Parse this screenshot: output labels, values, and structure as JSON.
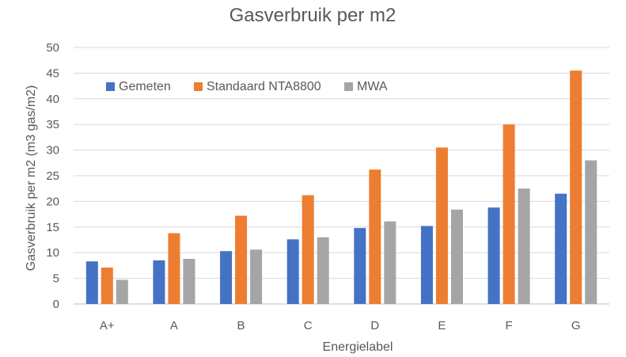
{
  "chart_data": {
    "type": "bar",
    "title": "Gasverbruik per m2",
    "xlabel": "Energielabel",
    "ylabel": "Gasverbruik per m2 (m3 gas/m2)",
    "categories": [
      "A+",
      "A",
      "B",
      "C",
      "D",
      "E",
      "F",
      "G"
    ],
    "ylim": [
      0,
      50
    ],
    "yticks": [
      0,
      5,
      10,
      15,
      20,
      25,
      30,
      35,
      40,
      45,
      50
    ],
    "grid": true,
    "legend_position": "top-left",
    "series": [
      {
        "name": "Gemeten",
        "color": "#4472C4",
        "values": [
          8.3,
          8.5,
          10.3,
          12.6,
          14.8,
          15.2,
          18.8,
          21.5
        ]
      },
      {
        "name": "Standaard NTA8800",
        "color": "#ED7D31",
        "values": [
          7.1,
          13.8,
          17.2,
          21.2,
          26.2,
          30.5,
          35.0,
          45.5
        ]
      },
      {
        "name": "MWA",
        "color": "#A5A5A5",
        "values": [
          4.7,
          8.8,
          10.6,
          13.0,
          16.1,
          18.4,
          22.5,
          28.0
        ]
      }
    ]
  }
}
